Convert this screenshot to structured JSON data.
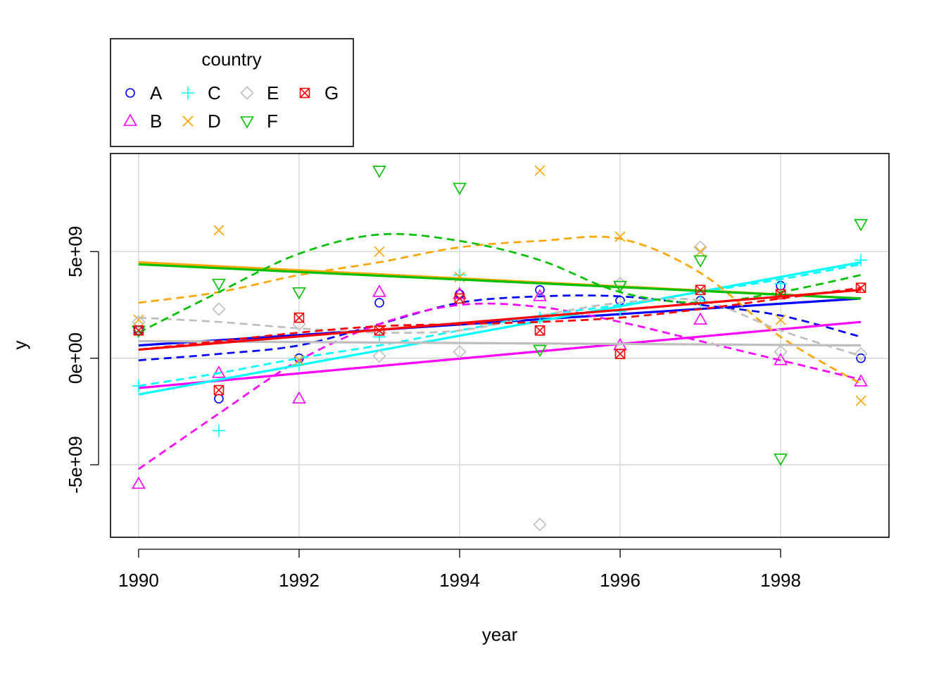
{
  "chart_data": {
    "type": "scatter",
    "xlabel": "year",
    "ylabel": "y",
    "xlim": [
      1989.65,
      1999.35
    ],
    "ylim": [
      -8400000000.0,
      9600000000.0
    ],
    "x_ticks": [
      1990,
      1992,
      1994,
      1996,
      1998
    ],
    "x_tick_labels": [
      "1990",
      "1992",
      "1994",
      "1996",
      "1998"
    ],
    "y_ticks": [
      -5000000000.0,
      0,
      5000000000.0
    ],
    "y_tick_labels": [
      "-5e+09",
      "0e+00",
      "5e+09"
    ],
    "grid": true,
    "legend": {
      "title": "country",
      "placement": "top-left outside plot"
    },
    "x": [
      1990,
      1991,
      1992,
      1993,
      1994,
      1995,
      1996,
      1997,
      1998,
      1999
    ],
    "series": [
      {
        "name": "A",
        "color": "#0000FF",
        "marker": "circle",
        "values": [
          1300000000.0,
          -1900000000.0,
          0.0,
          2600000000.0,
          3000000000.0,
          3200000000.0,
          2700000000.0,
          2700000000.0,
          3400000000.0,
          0.0
        ],
        "fit": [
          600000000.0,
          2800000000.0
        ],
        "smooth": [
          -100000000.0,
          200000000.0,
          600000000.0,
          1600000000.0,
          2600000000.0,
          2900000000.0,
          2900000000.0,
          2500000000.0,
          2000000000.0,
          1000000000.0
        ]
      },
      {
        "name": "B",
        "color": "#FF00FF",
        "marker": "triangle-up",
        "values": [
          -5900000000.0,
          -700000000.0,
          -1900000000.0,
          3100000000.0,
          3000000000.0,
          2900000000.0,
          600000000.0,
          1800000000.0,
          -100000000.0,
          -1100000000.0
        ],
        "fit": [
          -1400000000.0,
          1700000000.0
        ],
        "smooth": [
          -5200000000.0,
          -2600000000.0,
          -100000000.0,
          1600000000.0,
          2500000000.0,
          2400000000.0,
          1700000000.0,
          800000000.0,
          -100000000.0,
          -1000000000.0
        ]
      },
      {
        "name": "C",
        "color": "#00FFFF",
        "marker": "plus",
        "values": [
          -1300000000.0,
          -3400000000.0,
          -300000000.0,
          1000000000.0,
          3900000000.0,
          1900000000.0,
          2200000000.0,
          2700000000.0,
          3500000000.0,
          4600000000.0
        ],
        "fit": [
          -1700000000.0,
          4500000000.0
        ],
        "smooth": [
          -1300000000.0,
          -700000000.0,
          0.0,
          600000000.0,
          1300000000.0,
          2000000000.0,
          2500000000.0,
          3100000000.0,
          3700000000.0,
          4400000000.0
        ]
      },
      {
        "name": "D",
        "color": "#FFA500",
        "marker": "cross",
        "values": [
          1800000000.0,
          6000000000.0,
          -100000000.0,
          5000000000.0,
          3800000000.0,
          8800000000.0,
          5700000000.0,
          5000000000.0,
          1800000000.0,
          -2000000000.0
        ],
        "fit": [
          4500000000.0,
          2800000000.0
        ],
        "smooth": [
          2600000000.0,
          3100000000.0,
          3900000000.0,
          4500000000.0,
          5200000000.0,
          5500000000.0,
          5600000000.0,
          4000000000.0,
          1000000000.0,
          -1200000000.0
        ]
      },
      {
        "name": "E",
        "color": "#BEBEBE",
        "marker": "diamond",
        "values": [
          1700000000.0,
          2300000000.0,
          1600000000.0,
          100000000.0,
          300000000.0,
          -7800000000.0,
          3500000000.0,
          5200000000.0,
          300000000.0,
          200000000.0
        ],
        "fit": [
          800000000.0,
          600000000.0
        ],
        "smooth": [
          1900000000.0,
          1700000000.0,
          1400000000.0,
          1200000000.0,
          1300000000.0,
          2000000000.0,
          2600000000.0,
          2700000000.0,
          1300000000.0,
          100000000.0
        ]
      },
      {
        "name": "F",
        "color": "#00C000",
        "marker": "triangle-down",
        "values": [
          1300000000.0,
          3500000000.0,
          3100000000.0,
          8800000000.0,
          8000000000.0,
          400000000.0,
          3400000000.0,
          4600000000.0,
          -4700000000.0,
          6300000000.0
        ],
        "fit": [
          4400000000.0,
          2800000000.0
        ],
        "smooth": [
          1200000000.0,
          3100000000.0,
          4900000000.0,
          5800000000.0,
          5500000000.0,
          4600000000.0,
          3100000000.0,
          2600000000.0,
          3100000000.0,
          3900000000.0
        ]
      },
      {
        "name": "G",
        "color": "#FF0000",
        "marker": "square-x",
        "values": [
          1300000000.0,
          -1500000000.0,
          1900000000.0,
          1300000000.0,
          2800000000.0,
          1300000000.0,
          200000000.0,
          3200000000.0,
          3000000000.0,
          3300000000.0
        ],
        "fit": [
          400000000.0,
          3200000000.0
        ],
        "smooth": [
          400000000.0,
          800000000.0,
          1200000000.0,
          1500000000.0,
          1600000000.0,
          1700000000.0,
          1900000000.0,
          2300000000.0,
          2800000000.0,
          3300000000.0
        ]
      }
    ]
  }
}
